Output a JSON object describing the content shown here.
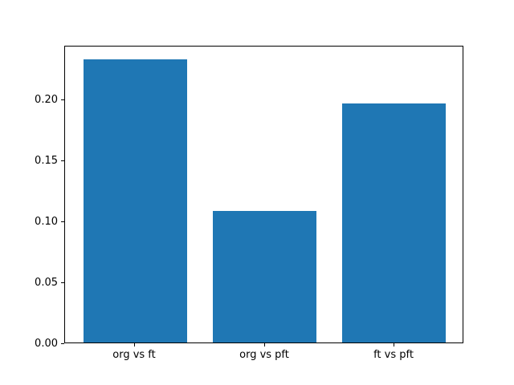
{
  "figure": {
    "background_color": "#ffffff"
  },
  "chart_data": {
    "type": "bar",
    "categories": [
      "org vs ft",
      "org vs pft",
      "ft vs pft"
    ],
    "values": [
      0.232,
      0.108,
      0.196
    ],
    "title": "",
    "xlabel": "",
    "ylabel": "",
    "ylim": [
      0,
      0.244
    ],
    "yticks": [
      0.0,
      0.05,
      0.1,
      0.15,
      0.2
    ],
    "ytick_labels": [
      "0.00",
      "0.05",
      "0.10",
      "0.15",
      "0.20"
    ],
    "bar_color": "#1f77b4",
    "axis_color": "#000000",
    "text_color": "#000000",
    "grid": false,
    "legend": null,
    "layout": {
      "bar_width_fraction": 0.8,
      "x_span_units": 3.08,
      "x_offset_units": 0.54
    }
  }
}
